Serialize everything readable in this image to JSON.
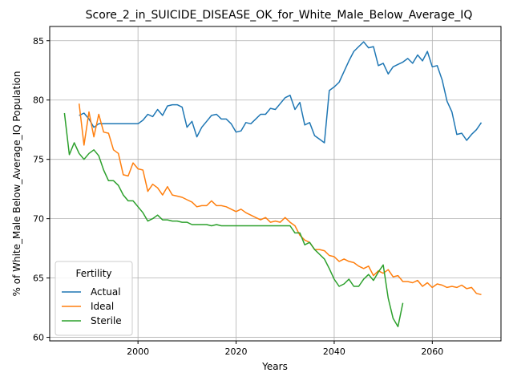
{
  "chart_data": {
    "type": "line",
    "title": "Score_2_in_SUICIDE_DISEASE_OK_for_White_Male_Below_Average_IQ",
    "xlabel": "Years",
    "ylabel": "% of White_Male Below_Average_IQ Population",
    "xlim": [
      1982,
      2074
    ],
    "ylim": [
      59.7,
      86.2
    ],
    "xticks": [
      2000,
      2020,
      2040,
      2060
    ],
    "yticks": [
      60,
      65,
      70,
      75,
      80,
      85
    ],
    "grid": true,
    "legend": {
      "title": "Fertility",
      "placement": "bottom-left"
    },
    "series": [
      {
        "name": "Actual",
        "color": "#1f77b4",
        "x": [
          1988,
          1989,
          1990,
          1991,
          1992,
          1993,
          1994,
          1995,
          1996,
          1997,
          1998,
          1999,
          2000,
          2001,
          2002,
          2003,
          2004,
          2005,
          2006,
          2007,
          2008,
          2009,
          2010,
          2011,
          2012,
          2013,
          2014,
          2015,
          2016,
          2017,
          2018,
          2019,
          2020,
          2021,
          2022,
          2023,
          2024,
          2025,
          2026,
          2027,
          2028,
          2029,
          2030,
          2031,
          2032,
          2033,
          2034,
          2035,
          2036,
          2037,
          2038,
          2039,
          2040,
          2041,
          2042,
          2043,
          2044,
          2045,
          2046,
          2047,
          2048,
          2049,
          2050,
          2051,
          2052,
          2053,
          2054,
          2055,
          2056,
          2057,
          2058,
          2059,
          2060,
          2061,
          2062,
          2063,
          2064,
          2065,
          2066,
          2067,
          2068,
          2069,
          2070
        ],
        "values": [
          78.7,
          78.9,
          78.4,
          77.7,
          78.0,
          78.0,
          78.0,
          78.0,
          78.0,
          78.0,
          78.0,
          78.0,
          78.0,
          78.3,
          78.8,
          78.6,
          79.2,
          78.7,
          79.5,
          79.6,
          79.6,
          79.4,
          77.7,
          78.2,
          76.9,
          77.7,
          78.2,
          78.7,
          78.8,
          78.4,
          78.4,
          78.0,
          77.3,
          77.4,
          78.1,
          78.0,
          78.4,
          78.8,
          78.8,
          79.3,
          79.2,
          79.7,
          80.2,
          80.4,
          79.2,
          79.8,
          77.9,
          78.1,
          77.0,
          76.7,
          76.4,
          80.8,
          81.1,
          81.5,
          82.4,
          83.3,
          84.1,
          84.5,
          84.9,
          84.4,
          84.5,
          82.9,
          83.1,
          82.2,
          82.8,
          83.0,
          83.2,
          83.5,
          83.1,
          83.8,
          83.3,
          84.1,
          82.8,
          82.9,
          81.7,
          79.9,
          79.0,
          77.1,
          77.2,
          76.6,
          77.1,
          77.5,
          78.1
        ]
      },
      {
        "name": "Ideal",
        "color": "#ff7f0e",
        "x": [
          1988,
          1989,
          1990,
          1991,
          1992,
          1993,
          1994,
          1995,
          1996,
          1997,
          1998,
          1999,
          2000,
          2001,
          2002,
          2003,
          2004,
          2005,
          2006,
          2007,
          2008,
          2009,
          2010,
          2011,
          2012,
          2013,
          2014,
          2015,
          2016,
          2017,
          2018,
          2019,
          2020,
          2021,
          2022,
          2023,
          2024,
          2025,
          2026,
          2027,
          2028,
          2029,
          2030,
          2031,
          2032,
          2033,
          2034,
          2035,
          2036,
          2037,
          2038,
          2039,
          2040,
          2041,
          2042,
          2043,
          2044,
          2045,
          2046,
          2047,
          2048,
          2049,
          2050,
          2051,
          2052,
          2053,
          2054,
          2055,
          2056,
          2057,
          2058,
          2059,
          2060,
          2061,
          2062,
          2063,
          2064,
          2065,
          2066,
          2067,
          2068,
          2069,
          2070
        ],
        "values": [
          79.7,
          76.2,
          79.0,
          76.9,
          78.8,
          77.3,
          77.2,
          75.8,
          75.5,
          73.7,
          73.6,
          74.7,
          74.2,
          74.1,
          72.3,
          72.9,
          72.6,
          72.0,
          72.7,
          72.0,
          71.9,
          71.8,
          71.6,
          71.4,
          71.0,
          71.1,
          71.1,
          71.5,
          71.1,
          71.1,
          71.0,
          70.8,
          70.6,
          70.8,
          70.5,
          70.3,
          70.1,
          69.9,
          70.1,
          69.7,
          69.8,
          69.7,
          70.1,
          69.7,
          69.4,
          68.6,
          68.2,
          68.0,
          67.4,
          67.4,
          67.3,
          66.9,
          66.8,
          66.4,
          66.6,
          66.4,
          66.3,
          66.0,
          65.8,
          66.0,
          65.2,
          65.6,
          65.4,
          65.7,
          65.1,
          65.2,
          64.7,
          64.7,
          64.6,
          64.8,
          64.3,
          64.6,
          64.2,
          64.5,
          64.4,
          64.2,
          64.3,
          64.2,
          64.4,
          64.1,
          64.2,
          63.7,
          63.6
        ]
      },
      {
        "name": "Sterile",
        "color": "#2ca02c",
        "x": [
          1985,
          1986,
          1987,
          1988,
          1989,
          1990,
          1991,
          1992,
          1993,
          1994,
          1995,
          1996,
          1997,
          1998,
          1999,
          2000,
          2001,
          2002,
          2003,
          2004,
          2005,
          2006,
          2007,
          2008,
          2009,
          2010,
          2011,
          2012,
          2013,
          2014,
          2015,
          2016,
          2017,
          2018,
          2019,
          2020,
          2021,
          2022,
          2023,
          2024,
          2025,
          2026,
          2027,
          2028,
          2029,
          2030,
          2031,
          2032,
          2033,
          2034,
          2035,
          2036,
          2037,
          2038,
          2039,
          2040,
          2041,
          2042,
          2043,
          2044,
          2045,
          2046,
          2047,
          2048,
          2049,
          2050,
          2051,
          2052,
          2053,
          2054
        ],
        "values": [
          78.9,
          75.4,
          76.4,
          75.5,
          75.0,
          75.5,
          75.8,
          75.3,
          74.1,
          73.2,
          73.2,
          72.8,
          72.0,
          71.5,
          71.5,
          71.0,
          70.5,
          69.8,
          70.0,
          70.3,
          69.9,
          69.9,
          69.8,
          69.8,
          69.7,
          69.7,
          69.5,
          69.5,
          69.5,
          69.5,
          69.4,
          69.5,
          69.4,
          69.4,
          69.4,
          69.4,
          69.4,
          69.4,
          69.4,
          69.4,
          69.4,
          69.4,
          69.4,
          69.4,
          69.4,
          69.4,
          69.4,
          68.8,
          68.8,
          67.8,
          68.0,
          67.4,
          67.0,
          66.6,
          65.8,
          64.9,
          64.3,
          64.5,
          64.9,
          64.3,
          64.3,
          64.9,
          65.3,
          64.8,
          65.5,
          66.1,
          63.3,
          61.6,
          60.9,
          62.9
        ]
      }
    ]
  }
}
